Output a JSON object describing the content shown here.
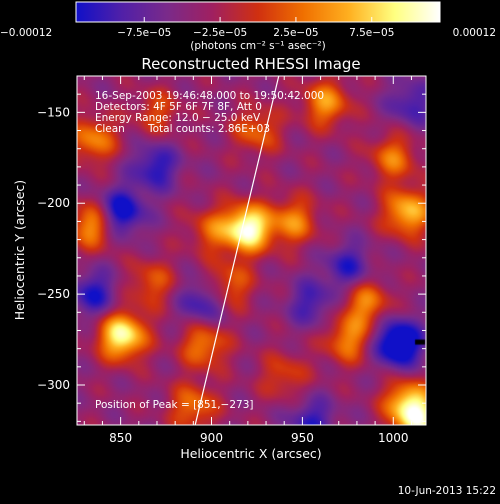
{
  "chart_data": {
    "type": "heatmap",
    "title": "Reconstructed RHESSI Image",
    "xlabel": "Heliocentric X (arcsec)",
    "ylabel": "Heliocentric Y (arcsec)",
    "xlim": [
      826,
      1018
    ],
    "ylim": [
      -322,
      -130
    ],
    "x_ticks": [
      850,
      900,
      950,
      1000
    ],
    "y_ticks": [
      -300,
      -250,
      -200,
      -150
    ],
    "x_tick_labels": [
      "850",
      "900",
      "950",
      "1000"
    ],
    "y_tick_labels": [
      "−300",
      "−250",
      "−200",
      "−150"
    ],
    "colorbar": {
      "min": -0.00012,
      "max": 0.00012,
      "ticks": [
        -0.00012,
        -7.5e-05,
        -2.5e-05,
        2.5e-05,
        7.5e-05,
        0.00012
      ],
      "tick_labels": [
        "−0.00012",
        "−7.5e−05",
        "−2.5e−05",
        "2.5e−05",
        "7.5e−05",
        "0.00012"
      ],
      "unit_label": "(photons cm⁻² s⁻¹ asec⁻²)",
      "colormap": [
        "#1010c8",
        "#5020a8",
        "#7a2a8a",
        "#a02060",
        "#d03010",
        "#f07000",
        "#ffb020",
        "#ffff80",
        "#ffffff"
      ]
    },
    "annotations": {
      "time_range": "16-Sep-2003 19:46:48.000 to 19:50:42.000",
      "detectors": "Detectors: 4F 5F 6F 7F 8F, Att 0",
      "energy": "Energy Range: 12.0 − 25.0 keV",
      "clean_label": "Clean",
      "total_counts": "Total counts: 2.86E+03",
      "peak": "Position of Peak = [851,−273]"
    },
    "peak": {
      "x": 851,
      "y": -273
    },
    "limb_line": [
      [
        891,
        -322
      ],
      [
        937,
        -130
      ]
    ],
    "sources": [
      {
        "x": 851,
        "y": -273,
        "a": 1.0
      },
      {
        "x": 920,
        "y": -214,
        "a": 1.1
      },
      {
        "x": 835,
        "y": -212,
        "a": 0.65
      },
      {
        "x": 835,
        "y": -165,
        "a": 0.55
      },
      {
        "x": 1008,
        "y": -205,
        "a": 0.75
      },
      {
        "x": 1000,
        "y": -175,
        "a": 0.5
      },
      {
        "x": 963,
        "y": -145,
        "a": 0.6
      },
      {
        "x": 985,
        "y": -255,
        "a": 0.55
      },
      {
        "x": 975,
        "y": -275,
        "a": 0.55
      },
      {
        "x": 1008,
        "y": -310,
        "a": 0.75
      },
      {
        "x": 1015,
        "y": -320,
        "a": 0.7
      },
      {
        "x": 945,
        "y": -210,
        "a": 0.55
      },
      {
        "x": 900,
        "y": -215,
        "a": 0.4
      },
      {
        "x": 896,
        "y": -278,
        "a": 0.55
      },
      {
        "x": 910,
        "y": -245,
        "a": 0.45
      },
      {
        "x": 867,
        "y": -244,
        "a": 0.4
      },
      {
        "x": 890,
        "y": -312,
        "a": 0.5
      },
      {
        "x": 925,
        "y": -160,
        "a": 0.45
      },
      {
        "x": 940,
        "y": -295,
        "a": 0.35
      },
      {
        "x": 870,
        "y": -150,
        "a": 0.35
      }
    ],
    "dips": [
      {
        "x": 850,
        "y": -205,
        "a": 0.7
      },
      {
        "x": 869,
        "y": -180,
        "a": 0.5
      },
      {
        "x": 895,
        "y": -255,
        "a": 0.45
      },
      {
        "x": 1003,
        "y": -277,
        "a": 0.9
      },
      {
        "x": 975,
        "y": -235,
        "a": 0.45
      },
      {
        "x": 835,
        "y": -250,
        "a": 0.5
      },
      {
        "x": 955,
        "y": -320,
        "a": 0.45
      },
      {
        "x": 1010,
        "y": -145,
        "a": 0.4
      },
      {
        "x": 955,
        "y": -255,
        "a": 0.4
      }
    ]
  },
  "footer": {
    "date": "10-Jun-2013 15:22"
  }
}
